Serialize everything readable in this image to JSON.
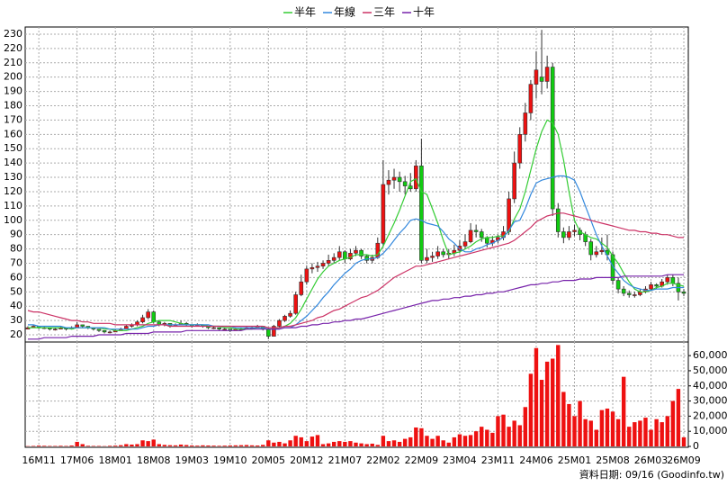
{
  "chart_data": {
    "type": "candlestick",
    "categories": [
      null,
      null,
      "16M11",
      null,
      null,
      null,
      null,
      null,
      null,
      "17M06",
      null,
      null,
      null,
      null,
      null,
      null,
      "18M01",
      null,
      null,
      null,
      null,
      null,
      null,
      "18M08",
      null,
      null,
      null,
      null,
      null,
      null,
      "19M03",
      null,
      null,
      null,
      null,
      null,
      null,
      "19M10",
      null,
      null,
      null,
      null,
      null,
      null,
      "20M05",
      null,
      null,
      null,
      null,
      null,
      null,
      "20M12",
      null,
      null,
      null,
      null,
      null,
      null,
      "21M07",
      null,
      null,
      null,
      null,
      null,
      null,
      "22M02",
      null,
      null,
      null,
      null,
      null,
      null,
      "22M09",
      null,
      null,
      null,
      null,
      null,
      null,
      "23M04",
      null,
      null,
      null,
      null,
      null,
      null,
      "23M11",
      null,
      null,
      null,
      null,
      null,
      null,
      "24M06",
      null,
      null,
      null,
      null,
      null,
      null,
      "25M01",
      null,
      null,
      null,
      null,
      null,
      null,
      "25M08",
      null,
      null,
      null,
      null,
      null,
      null,
      "26M03",
      null,
      null,
      null,
      null,
      null,
      "26M09"
    ],
    "ohlc": [
      [
        24,
        26,
        24,
        25
      ],
      [
        25,
        27,
        25,
        26
      ],
      [
        26,
        26,
        24,
        25
      ],
      [
        25,
        26,
        24,
        25
      ],
      [
        25,
        25,
        23,
        24
      ],
      [
        24,
        25,
        23,
        24
      ],
      [
        24,
        26,
        24,
        25
      ],
      [
        25,
        25,
        23,
        24
      ],
      [
        24,
        26,
        24,
        25
      ],
      [
        25,
        29,
        25,
        27
      ],
      [
        27,
        27,
        25,
        26
      ],
      [
        26,
        26,
        24,
        25
      ],
      [
        25,
        25,
        23,
        24
      ],
      [
        24,
        24,
        22,
        23
      ],
      [
        23,
        23,
        21,
        22
      ],
      [
        22,
        23,
        21,
        22
      ],
      [
        22,
        24,
        22,
        23
      ],
      [
        23,
        25,
        23,
        24
      ],
      [
        24,
        27,
        24,
        26
      ],
      [
        26,
        28,
        25,
        27
      ],
      [
        27,
        30,
        26,
        29
      ],
      [
        29,
        34,
        28,
        32
      ],
      [
        32,
        38,
        31,
        36
      ],
      [
        36,
        37,
        28,
        29
      ],
      [
        29,
        30,
        26,
        27
      ],
      [
        27,
        29,
        26,
        28
      ],
      [
        28,
        28,
        25,
        26
      ],
      [
        26,
        28,
        26,
        27
      ],
      [
        27,
        30,
        27,
        28
      ],
      [
        28,
        29,
        26,
        27
      ],
      [
        27,
        27,
        25,
        26
      ],
      [
        26,
        28,
        26,
        27
      ],
      [
        27,
        27,
        25,
        26
      ],
      [
        26,
        26,
        24,
        25
      ],
      [
        25,
        26,
        24,
        25
      ],
      [
        25,
        25,
        23,
        24
      ],
      [
        24,
        25,
        23,
        24
      ],
      [
        24,
        24,
        22,
        23
      ],
      [
        23,
        25,
        23,
        24
      ],
      [
        24,
        25,
        23,
        24
      ],
      [
        24,
        26,
        24,
        25
      ],
      [
        25,
        26,
        24,
        25
      ],
      [
        25,
        27,
        25,
        26
      ],
      [
        26,
        26,
        23,
        24
      ],
      [
        24,
        25,
        17,
        19
      ],
      [
        19,
        27,
        19,
        26
      ],
      [
        26,
        31,
        25,
        30
      ],
      [
        30,
        34,
        29,
        33
      ],
      [
        33,
        37,
        32,
        35
      ],
      [
        35,
        50,
        34,
        48
      ],
      [
        48,
        62,
        47,
        57
      ],
      [
        57,
        68,
        55,
        66
      ],
      [
        66,
        70,
        63,
        67
      ],
      [
        67,
        71,
        64,
        68
      ],
      [
        68,
        72,
        66,
        70
      ],
      [
        70,
        76,
        68,
        72
      ],
      [
        72,
        77,
        70,
        74
      ],
      [
        74,
        82,
        72,
        78
      ],
      [
        78,
        79,
        70,
        73
      ],
      [
        73,
        80,
        72,
        77
      ],
      [
        77,
        82,
        75,
        79
      ],
      [
        79,
        80,
        73,
        75
      ],
      [
        75,
        76,
        70,
        72
      ],
      [
        72,
        76,
        70,
        74
      ],
      [
        74,
        88,
        73,
        84
      ],
      [
        84,
        142,
        82,
        125
      ],
      [
        125,
        135,
        118,
        128
      ],
      [
        128,
        136,
        122,
        130
      ],
      [
        130,
        134,
        120,
        127
      ],
      [
        127,
        131,
        118,
        124
      ],
      [
        124,
        133,
        120,
        122
      ],
      [
        122,
        142,
        120,
        138
      ],
      [
        138,
        157,
        70,
        72
      ],
      [
        72,
        80,
        70,
        74
      ],
      [
        74,
        78,
        71,
        75
      ],
      [
        75,
        82,
        73,
        78
      ],
      [
        78,
        80,
        74,
        76
      ],
      [
        76,
        80,
        73,
        77
      ],
      [
        77,
        83,
        75,
        79
      ],
      [
        79,
        86,
        77,
        82
      ],
      [
        82,
        90,
        80,
        85
      ],
      [
        85,
        98,
        84,
        93
      ],
      [
        93,
        97,
        88,
        92
      ],
      [
        92,
        94,
        85,
        88
      ],
      [
        88,
        89,
        81,
        84
      ],
      [
        84,
        89,
        82,
        86
      ],
      [
        86,
        90,
        84,
        88
      ],
      [
        88,
        96,
        86,
        92
      ],
      [
        92,
        120,
        90,
        115
      ],
      [
        115,
        148,
        112,
        140
      ],
      [
        140,
        165,
        136,
        160
      ],
      [
        160,
        182,
        155,
        175
      ],
      [
        175,
        198,
        170,
        195
      ],
      [
        195,
        218,
        185,
        205
      ],
      [
        200,
        233,
        188,
        197
      ],
      [
        197,
        215,
        192,
        207
      ],
      [
        207,
        210,
        103,
        108
      ],
      [
        108,
        112,
        88,
        92
      ],
      [
        92,
        95,
        84,
        88
      ],
      [
        88,
        96,
        86,
        92
      ],
      [
        92,
        97,
        89,
        93
      ],
      [
        93,
        95,
        86,
        90
      ],
      [
        90,
        92,
        82,
        85
      ],
      [
        85,
        87,
        72,
        76
      ],
      [
        76,
        82,
        74,
        78
      ],
      [
        78,
        88,
        76,
        79
      ],
      [
        79,
        90,
        72,
        76
      ],
      [
        76,
        78,
        55,
        58
      ],
      [
        58,
        60,
        49,
        52
      ],
      [
        52,
        54,
        47,
        49
      ],
      [
        49,
        51,
        46,
        48
      ],
      [
        48,
        50,
        46,
        48
      ],
      [
        48,
        52,
        47,
        50
      ],
      [
        50,
        54,
        49,
        52
      ],
      [
        52,
        57,
        51,
        55
      ],
      [
        55,
        56,
        52,
        54
      ],
      [
        54,
        59,
        53,
        57
      ],
      [
        57,
        62,
        55,
        60
      ],
      [
        60,
        62,
        54,
        56
      ],
      [
        56,
        60,
        44,
        50
      ],
      [
        50,
        52,
        47,
        49
      ]
    ],
    "up_color": "#ee1111",
    "down_color": "#11cc11",
    "series": [
      {
        "name": "半年",
        "color": "#33cc33",
        "values": [
          25,
          25,
          25,
          25,
          25,
          25,
          25,
          25,
          24,
          25,
          25,
          25,
          25,
          25,
          24,
          24,
          23,
          23,
          23,
          24,
          25,
          26,
          28,
          29,
          30,
          30,
          30,
          29,
          28,
          27,
          27,
          27,
          27,
          26,
          26,
          26,
          25,
          25,
          24,
          24,
          24,
          24,
          25,
          25,
          24,
          24,
          25,
          26,
          28,
          32,
          38,
          45,
          52,
          59,
          64,
          68,
          70,
          72,
          73,
          74,
          76,
          76,
          76,
          75,
          76,
          82,
          90,
          98,
          107,
          117,
          127,
          129,
          120,
          118,
          108,
          98,
          86,
          76,
          77,
          78,
          80,
          82,
          85,
          87,
          88,
          88,
          89,
          89,
          92,
          101,
          108,
          120,
          135,
          150,
          162,
          170,
          168,
          160,
          142,
          120,
          100,
          92,
          90,
          88,
          87,
          84,
          81,
          75,
          70,
          63,
          57,
          52,
          50,
          50,
          51,
          53,
          54,
          56,
          56,
          55,
          54
        ]
      },
      {
        "name": "年線",
        "color": "#3388dd",
        "values": [
          27,
          27,
          26,
          26,
          26,
          26,
          26,
          25,
          25,
          25,
          25,
          25,
          25,
          25,
          25,
          24,
          24,
          24,
          24,
          24,
          24,
          25,
          26,
          26,
          27,
          27,
          27,
          27,
          27,
          27,
          27,
          27,
          27,
          27,
          26,
          26,
          26,
          26,
          25,
          25,
          25,
          25,
          25,
          25,
          24,
          24,
          24,
          25,
          25,
          27,
          30,
          33,
          37,
          41,
          46,
          50,
          55,
          59,
          63,
          66,
          70,
          72,
          73,
          73,
          74,
          77,
          81,
          86,
          91,
          95,
          100,
          101,
          100,
          98,
          97,
          96,
          92,
          87,
          84,
          80,
          78,
          78,
          80,
          81,
          83,
          84,
          86,
          88,
          93,
          99,
          100,
          108,
          118,
          126,
          128,
          129,
          130,
          131,
          131,
          130,
          128,
          120,
          110,
          100,
          90,
          82,
          75,
          68,
          63,
          58,
          55,
          53,
          52,
          51,
          51,
          52,
          52,
          52,
          53,
          53,
          53
        ]
      },
      {
        "name": "三年",
        "color": "#cc3366",
        "values": [
          37,
          36,
          36,
          35,
          34,
          33,
          32,
          31,
          30,
          30,
          29,
          29,
          28,
          28,
          28,
          28,
          27,
          27,
          27,
          27,
          27,
          27,
          27,
          27,
          27,
          27,
          26,
          26,
          26,
          26,
          26,
          26,
          26,
          26,
          26,
          26,
          26,
          26,
          26,
          26,
          26,
          26,
          26,
          26,
          25,
          25,
          25,
          26,
          26,
          27,
          28,
          29,
          30,
          32,
          33,
          35,
          37,
          38,
          40,
          42,
          44,
          46,
          47,
          49,
          51,
          54,
          57,
          60,
          62,
          64,
          66,
          68,
          68,
          69,
          70,
          71,
          72,
          73,
          74,
          75,
          76,
          77,
          78,
          79,
          80,
          81,
          82,
          83,
          84,
          86,
          89,
          92,
          95,
          99,
          101,
          103,
          104,
          105,
          105,
          104,
          103,
          102,
          101,
          100,
          99,
          98,
          97,
          96,
          95,
          94,
          93,
          93,
          92,
          92,
          91,
          91,
          90,
          90,
          89,
          88,
          88
        ]
      },
      {
        "name": "十年",
        "color": "#7722aa",
        "values": [
          17,
          17,
          17,
          18,
          18,
          18,
          18,
          18,
          19,
          19,
          19,
          19,
          19,
          20,
          20,
          20,
          20,
          20,
          21,
          21,
          21,
          21,
          21,
          22,
          22,
          22,
          22,
          22,
          22,
          23,
          23,
          23,
          23,
          23,
          23,
          23,
          23,
          23,
          23,
          23,
          24,
          24,
          24,
          24,
          24,
          24,
          24,
          25,
          25,
          25,
          26,
          26,
          27,
          27,
          28,
          28,
          29,
          29,
          30,
          30,
          31,
          31,
          32,
          33,
          34,
          35,
          36,
          37,
          38,
          39,
          40,
          41,
          42,
          43,
          44,
          44,
          45,
          45,
          46,
          46,
          47,
          47,
          48,
          48,
          49,
          49,
          50,
          50,
          51,
          52,
          53,
          54,
          55,
          55,
          56,
          56,
          57,
          57,
          58,
          58,
          58,
          59,
          59,
          59,
          60,
          60,
          60,
          60,
          60,
          61,
          61,
          61,
          61,
          61,
          61,
          61,
          61,
          62,
          62,
          62,
          62
        ]
      }
    ],
    "volume": [
      200,
      300,
      500,
      400,
      300,
      300,
      400,
      300,
      600,
      3000,
      1500,
      400,
      300,
      300,
      200,
      400,
      500,
      800,
      1500,
      1200,
      1500,
      4000,
      3500,
      4500,
      1500,
      1000,
      800,
      700,
      1200,
      900,
      600,
      500,
      700,
      600,
      500,
      400,
      500,
      600,
      700,
      800,
      900,
      700,
      600,
      1000,
      4000,
      2500,
      3000,
      2000,
      4000,
      7000,
      6000,
      3500,
      6500,
      7500,
      1500,
      2000,
      3000,
      3500,
      3000,
      3500,
      2500,
      2000,
      1500,
      1800,
      1000,
      7000,
      3500,
      4000,
      3000,
      5000,
      6000,
      12500,
      12000,
      7000,
      5000,
      7000,
      4000,
      2500,
      6000,
      8000,
      7000,
      7500,
      10000,
      13000,
      11000,
      9000,
      20000,
      21000,
      13000,
      17000,
      14000,
      26000,
      48000,
      65000,
      44000,
      56000,
      58000,
      67000,
      36000,
      28000,
      20000,
      30000,
      18000,
      17000,
      11000,
      24000,
      25000,
      23000,
      18000,
      46000,
      13000,
      16000,
      17000,
      19000,
      11000,
      18000,
      16000,
      20000,
      30000,
      38000,
      6000
    ],
    "volume_color": "#ee1111",
    "ylim": [
      15,
      235
    ],
    "yticks": [
      20,
      30,
      40,
      50,
      60,
      70,
      80,
      90,
      100,
      110,
      120,
      130,
      140,
      150,
      160,
      170,
      180,
      190,
      200,
      210,
      220,
      230
    ],
    "y2lim": [
      0,
      69000
    ],
    "y2ticks": [
      0,
      {
        "value": 10000,
        "label": "10,000"
      },
      {
        "value": 20000,
        "label": "20,000"
      },
      {
        "value": 30000,
        "label": "30,000"
      },
      {
        "value": 40000,
        "label": "40,000"
      },
      {
        "value": 50000,
        "label": "50,000"
      },
      {
        "value": 60000,
        "label": "60,000"
      }
    ],
    "grid": true,
    "footer": "資料日期: 09/16  (Goodinfo.tw)"
  }
}
